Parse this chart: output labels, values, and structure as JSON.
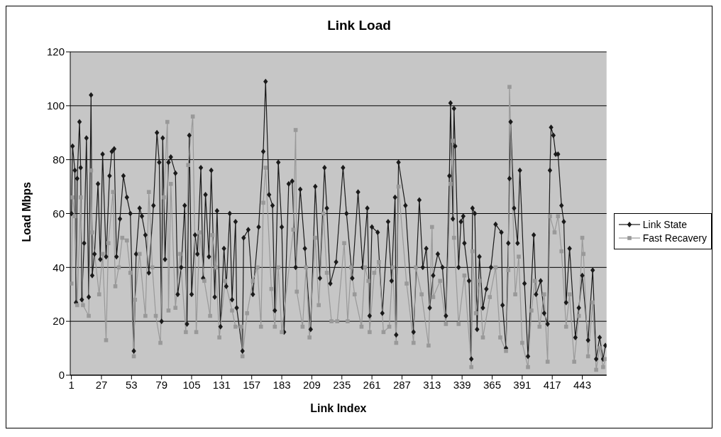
{
  "chart_data": {
    "type": "line",
    "title": "Link Load",
    "xlabel": "Link Index",
    "ylabel": "Load Mbps",
    "xlim": [
      0,
      464
    ],
    "xticks": [
      1,
      27,
      53,
      79,
      105,
      131,
      157,
      183,
      209,
      235,
      261,
      287,
      313,
      339,
      365,
      391,
      417,
      443
    ],
    "ylim": [
      0,
      120
    ],
    "yticks": [
      0,
      20,
      40,
      60,
      80,
      100,
      120
    ],
    "grid": "y",
    "legend": "right",
    "line_style": "solid",
    "series": [
      {
        "name": "Link State",
        "color": "#1a1a1a",
        "marker": "diamond",
        "x": [
          1,
          2,
          4,
          5,
          6,
          8,
          9,
          10,
          12,
          14,
          16,
          18,
          19,
          21,
          24,
          26,
          28,
          31,
          34,
          36,
          38,
          40,
          43,
          46,
          49,
          52,
          55,
          57,
          60,
          62,
          65,
          68,
          72,
          75,
          77,
          79,
          80,
          82,
          85,
          87,
          91,
          93,
          96,
          99,
          101,
          103,
          105,
          108,
          110,
          113,
          115,
          117,
          120,
          122,
          125,
          127,
          130,
          133,
          135,
          138,
          140,
          143,
          144,
          149,
          150,
          154,
          158,
          163,
          167,
          169,
          172,
          175,
          177,
          180,
          183,
          185,
          189,
          192,
          195,
          199,
          203,
          208,
          212,
          216,
          220,
          222,
          225,
          230,
          236,
          239,
          244,
          249,
          253,
          257,
          259,
          261,
          266,
          270,
          275,
          278,
          281,
          282,
          284,
          290,
          297,
          302,
          305,
          308,
          311,
          314,
          318,
          322,
          325,
          328,
          329,
          331,
          332,
          333,
          336,
          338,
          340,
          341,
          345,
          347,
          348,
          350,
          352,
          354,
          357,
          360,
          364,
          368,
          373,
          374,
          377,
          379,
          380,
          381,
          384,
          387,
          389,
          393,
          396,
          401,
          403,
          407,
          410,
          413,
          415,
          416,
          418,
          420,
          422,
          425,
          427,
          429,
          432,
          437,
          440,
          443,
          448,
          452,
          455,
          458,
          461,
          463
        ],
        "values": [
          60,
          85,
          76,
          27,
          73,
          94,
          77,
          28,
          49,
          88,
          29,
          104,
          37,
          45,
          71,
          43,
          82,
          44,
          74,
          83,
          84,
          44,
          58,
          74,
          66,
          60,
          9,
          45,
          62,
          59,
          52,
          38,
          63,
          90,
          79,
          20,
          88,
          43,
          79,
          81,
          75,
          30,
          40,
          63,
          19,
          89,
          30,
          52,
          45,
          77,
          36,
          67,
          44,
          76,
          29,
          61,
          18,
          47,
          33,
          60,
          28,
          57,
          25,
          9,
          51,
          54,
          30,
          55,
          83,
          109,
          67,
          63,
          24,
          79,
          55,
          16,
          71,
          72,
          40,
          69,
          47,
          17,
          70,
          36,
          77,
          62,
          34,
          42,
          77,
          60,
          36,
          68,
          40,
          62,
          22,
          55,
          53,
          23,
          57,
          35,
          66,
          15,
          79,
          63,
          16,
          65,
          40,
          47,
          25,
          37,
          45,
          40,
          22,
          74,
          101,
          58,
          99,
          85,
          40,
          57,
          59,
          49,
          35,
          6,
          62,
          60,
          17,
          44,
          25,
          32,
          40,
          56,
          53,
          26,
          10,
          49,
          73,
          94,
          62,
          49,
          76,
          34,
          7,
          52,
          30,
          35,
          23,
          19,
          76,
          92,
          89,
          82,
          82,
          63,
          57,
          27,
          47,
          14,
          25,
          37,
          13,
          39,
          6,
          14,
          6,
          11
        ]
      },
      {
        "name": "Fast Recavery",
        "color": "#999999",
        "marker": "square",
        "x": [
          1,
          2,
          4,
          6,
          9,
          11,
          16,
          18,
          19,
          25,
          28,
          31,
          33,
          37,
          39,
          42,
          45,
          49,
          52,
          55,
          56,
          60,
          65,
          68,
          71,
          74,
          78,
          81,
          84,
          85,
          87,
          91,
          95,
          100,
          102,
          106,
          109,
          112,
          116,
          121,
          123,
          126,
          129,
          134,
          140,
          143,
          148,
          149,
          153,
          158,
          162,
          165,
          167,
          169,
          174,
          177,
          180,
          183,
          193,
          195,
          196,
          201,
          204,
          207,
          212,
          215,
          219,
          222,
          226,
          231,
          237,
          240,
          243,
          246,
          252,
          255,
          258,
          259,
          263,
          267,
          271,
          276,
          279,
          282,
          284,
          291,
          297,
          299,
          304,
          310,
          313,
          314,
          320,
          325,
          329,
          331,
          332,
          336,
          341,
          347,
          348,
          351,
          354,
          357,
          363,
          368,
          372,
          377,
          379,
          380,
          385,
          388,
          391,
          396,
          399,
          402,
          406,
          410,
          413,
          415,
          419,
          422,
          425,
          429,
          432,
          436,
          440,
          443,
          444,
          448,
          452,
          455,
          458,
          461,
          463
        ],
        "values": [
          34,
          66,
          59,
          26,
          66,
          26,
          22,
          76,
          53,
          30,
          45,
          13,
          49,
          68,
          33,
          40,
          51,
          50,
          38,
          7,
          28,
          45,
          22,
          68,
          40,
          22,
          12,
          66,
          94,
          24,
          71,
          25,
          45,
          16,
          78,
          96,
          16,
          53,
          35,
          22,
          52,
          40,
          14,
          35,
          24,
          18,
          18,
          7,
          23,
          35,
          40,
          18,
          64,
          77,
          32,
          18,
          40,
          16,
          54,
          91,
          31,
          18,
          40,
          14,
          51,
          26,
          60,
          38,
          20,
          20,
          49,
          20,
          40,
          30,
          18,
          40,
          35,
          16,
          38,
          42,
          16,
          18,
          40,
          12,
          70,
          34,
          12,
          40,
          30,
          11,
          55,
          29,
          35,
          19,
          71,
          87,
          51,
          19,
          37,
          3,
          46,
          23,
          35,
          14,
          29,
          40,
          14,
          9,
          39,
          107,
          30,
          44,
          12,
          3,
          24,
          35,
          18,
          30,
          5,
          59,
          53,
          59,
          46,
          18,
          30,
          5,
          22,
          51,
          45,
          7,
          27,
          2,
          10,
          3,
          6
        ]
      }
    ]
  }
}
